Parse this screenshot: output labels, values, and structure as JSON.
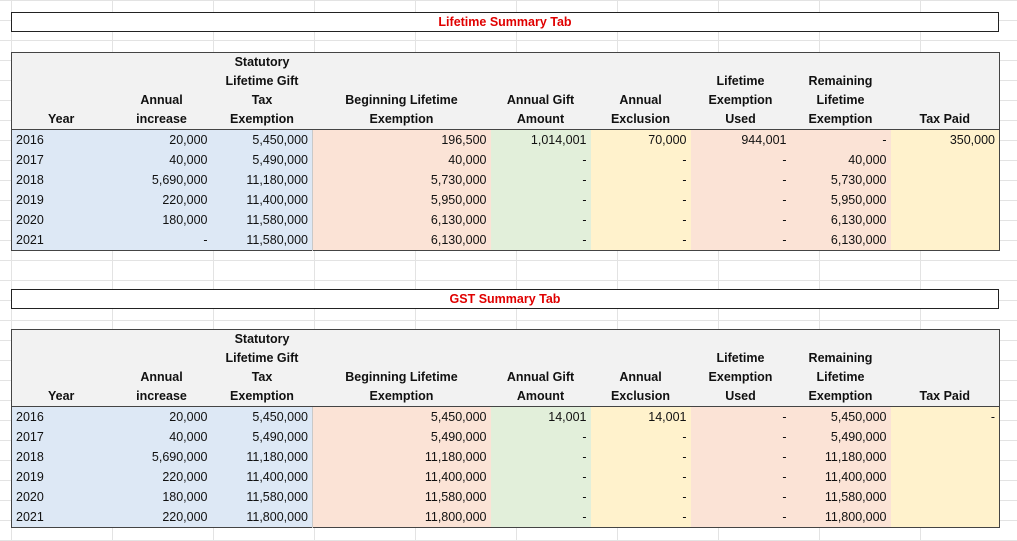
{
  "lifetime": {
    "title": "Lifetime Summary Tab",
    "headers": {
      "year": "Year",
      "annual_increase": [
        "Annual",
        "increase"
      ],
      "statutory": [
        "Statutory",
        "Lifetime Gift",
        "Tax",
        "Exemption"
      ],
      "beginning": [
        "Beginning Lifetime",
        "Exemption"
      ],
      "annual_gift": [
        "Annual Gift",
        "Amount"
      ],
      "annual_exclusion": [
        "Annual",
        "Exclusion"
      ],
      "lifetime_used": [
        "Lifetime",
        "Exemption",
        "Used"
      ],
      "remaining": [
        "Remaining",
        "Lifetime",
        "Exemption"
      ],
      "tax_paid": "Tax Paid"
    },
    "rows": [
      [
        "2016",
        "20,000",
        "5,450,000",
        "196,500",
        "1,014,001",
        "70,000",
        "944,001",
        "-",
        "350,000"
      ],
      [
        "2017",
        "40,000",
        "5,490,000",
        "40,000",
        "-",
        "-",
        "-",
        "40,000",
        ""
      ],
      [
        "2018",
        "5,690,000",
        "11,180,000",
        "5,730,000",
        "-",
        "-",
        "-",
        "5,730,000",
        ""
      ],
      [
        "2019",
        "220,000",
        "11,400,000",
        "5,950,000",
        "-",
        "-",
        "-",
        "5,950,000",
        ""
      ],
      [
        "2020",
        "180,000",
        "11,580,000",
        "6,130,000",
        "-",
        "-",
        "-",
        "6,130,000",
        ""
      ],
      [
        "2021",
        "-",
        "11,580,000",
        "6,130,000",
        "-",
        "-",
        "-",
        "6,130,000",
        ""
      ]
    ]
  },
  "gst": {
    "title": "GST Summary Tab",
    "headers": {
      "year": "Year",
      "annual_increase": [
        "Annual",
        "increase"
      ],
      "statutory": [
        "Statutory",
        "Lifetime Gift",
        "Tax",
        "Exemption"
      ],
      "beginning": [
        "Beginning Lifetime",
        "Exemption"
      ],
      "annual_gift": [
        "Annual Gift",
        "Amount"
      ],
      "annual_exclusion": [
        "Annual",
        "Exclusion"
      ],
      "lifetime_used": [
        "Lifetime",
        "Exemption",
        "Used"
      ],
      "remaining": [
        "Remaining",
        "Lifetime",
        "Exemption"
      ],
      "tax_paid": "Tax Paid"
    },
    "rows": [
      [
        "2016",
        "20,000",
        "5,450,000",
        "5,450,000",
        "14,001",
        "14,001",
        "-",
        "5,450,000",
        "-"
      ],
      [
        "2017",
        "40,000",
        "5,490,000",
        "5,490,000",
        "-",
        "-",
        "-",
        "5,490,000",
        ""
      ],
      [
        "2018",
        "5,690,000",
        "11,180,000",
        "11,180,000",
        "-",
        "-",
        "-",
        "11,180,000",
        ""
      ],
      [
        "2019",
        "220,000",
        "11,400,000",
        "11,400,000",
        "-",
        "-",
        "-",
        "11,400,000",
        ""
      ],
      [
        "2020",
        "180,000",
        "11,580,000",
        "11,580,000",
        "-",
        "-",
        "-",
        "11,580,000",
        ""
      ],
      [
        "2021",
        "220,000",
        "11,800,000",
        "11,800,000",
        "-",
        "-",
        "-",
        "11,800,000",
        ""
      ]
    ]
  },
  "colors": {
    "title_text": "#e00000",
    "blue_fill": "#dde8f5",
    "peach_fill": "#fbe3d6",
    "green_fill": "#e2efda",
    "yellow_fill": "#fff2cc",
    "header_fill": "#f2f2f2"
  }
}
